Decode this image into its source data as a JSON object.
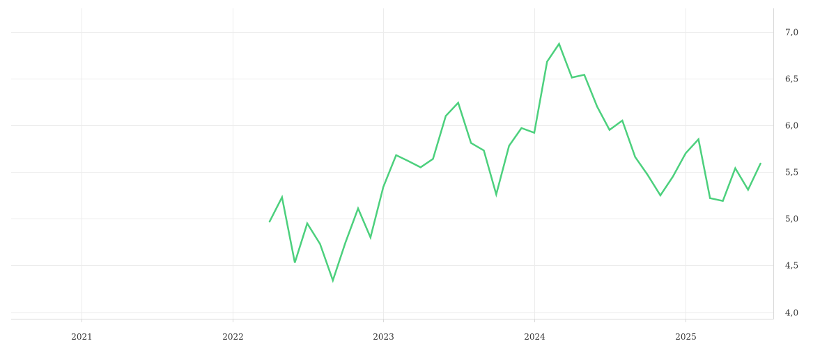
{
  "chart_data": {
    "type": "line",
    "title": "",
    "xlabel": "",
    "ylabel": "",
    "x_range": [
      "2020-07-15",
      "2025-08-01"
    ],
    "ylim": [
      3.93,
      7.25
    ],
    "y_axis_position": "right",
    "grid": true,
    "legend": "none",
    "x_ticks": [
      {
        "date": "2021-01-01",
        "label": "2021"
      },
      {
        "date": "2022-01-01",
        "label": "2022"
      },
      {
        "date": "2023-01-01",
        "label": "2023"
      },
      {
        "date": "2024-01-01",
        "label": "2024"
      },
      {
        "date": "2025-01-01",
        "label": "2025"
      }
    ],
    "y_ticks": [
      {
        "value": 4.0,
        "label": "4,0"
      },
      {
        "value": 4.5,
        "label": "4,5"
      },
      {
        "value": 5.0,
        "label": "5,0"
      },
      {
        "value": 5.5,
        "label": "5,5"
      },
      {
        "value": 6.0,
        "label": "6,0"
      },
      {
        "value": 6.5,
        "label": "6,5"
      },
      {
        "value": 7.0,
        "label": "7,0"
      }
    ],
    "series": [
      {
        "color": "#4cd07d",
        "points": [
          {
            "x": "2022-04-01",
            "y": 4.97
          },
          {
            "x": "2022-05-01",
            "y": 5.23
          },
          {
            "x": "2022-06-01",
            "y": 4.53
          },
          {
            "x": "2022-07-01",
            "y": 4.95
          },
          {
            "x": "2022-08-01",
            "y": 4.73
          },
          {
            "x": "2022-09-01",
            "y": 4.34
          },
          {
            "x": "2022-10-01",
            "y": 4.74
          },
          {
            "x": "2022-11-01",
            "y": 5.11
          },
          {
            "x": "2022-12-01",
            "y": 4.8
          },
          {
            "x": "2023-01-01",
            "y": 5.34
          },
          {
            "x": "2023-02-01",
            "y": 5.68
          },
          {
            "x": "2023-03-01",
            "y": 5.62
          },
          {
            "x": "2023-04-01",
            "y": 5.55
          },
          {
            "x": "2023-05-01",
            "y": 5.64
          },
          {
            "x": "2023-06-01",
            "y": 6.1
          },
          {
            "x": "2023-07-01",
            "y": 6.24
          },
          {
            "x": "2023-08-01",
            "y": 5.81
          },
          {
            "x": "2023-09-01",
            "y": 5.73
          },
          {
            "x": "2023-10-01",
            "y": 5.26
          },
          {
            "x": "2023-11-01",
            "y": 5.78
          },
          {
            "x": "2023-12-01",
            "y": 5.97
          },
          {
            "x": "2024-01-01",
            "y": 5.92
          },
          {
            "x": "2024-02-01",
            "y": 6.68
          },
          {
            "x": "2024-03-01",
            "y": 6.87
          },
          {
            "x": "2024-04-01",
            "y": 6.51
          },
          {
            "x": "2024-05-01",
            "y": 6.54
          },
          {
            "x": "2024-06-01",
            "y": 6.2
          },
          {
            "x": "2024-07-01",
            "y": 5.95
          },
          {
            "x": "2024-08-01",
            "y": 6.05
          },
          {
            "x": "2024-09-01",
            "y": 5.66
          },
          {
            "x": "2024-10-01",
            "y": 5.47
          },
          {
            "x": "2024-11-01",
            "y": 5.25
          },
          {
            "x": "2024-12-01",
            "y": 5.45
          },
          {
            "x": "2025-01-01",
            "y": 5.7
          },
          {
            "x": "2025-02-01",
            "y": 5.85
          },
          {
            "x": "2025-03-01",
            "y": 5.22
          },
          {
            "x": "2025-04-01",
            "y": 5.19
          },
          {
            "x": "2025-05-01",
            "y": 5.54
          },
          {
            "x": "2025-06-01",
            "y": 5.31
          },
          {
            "x": "2025-07-01",
            "y": 5.59
          }
        ]
      }
    ]
  }
}
